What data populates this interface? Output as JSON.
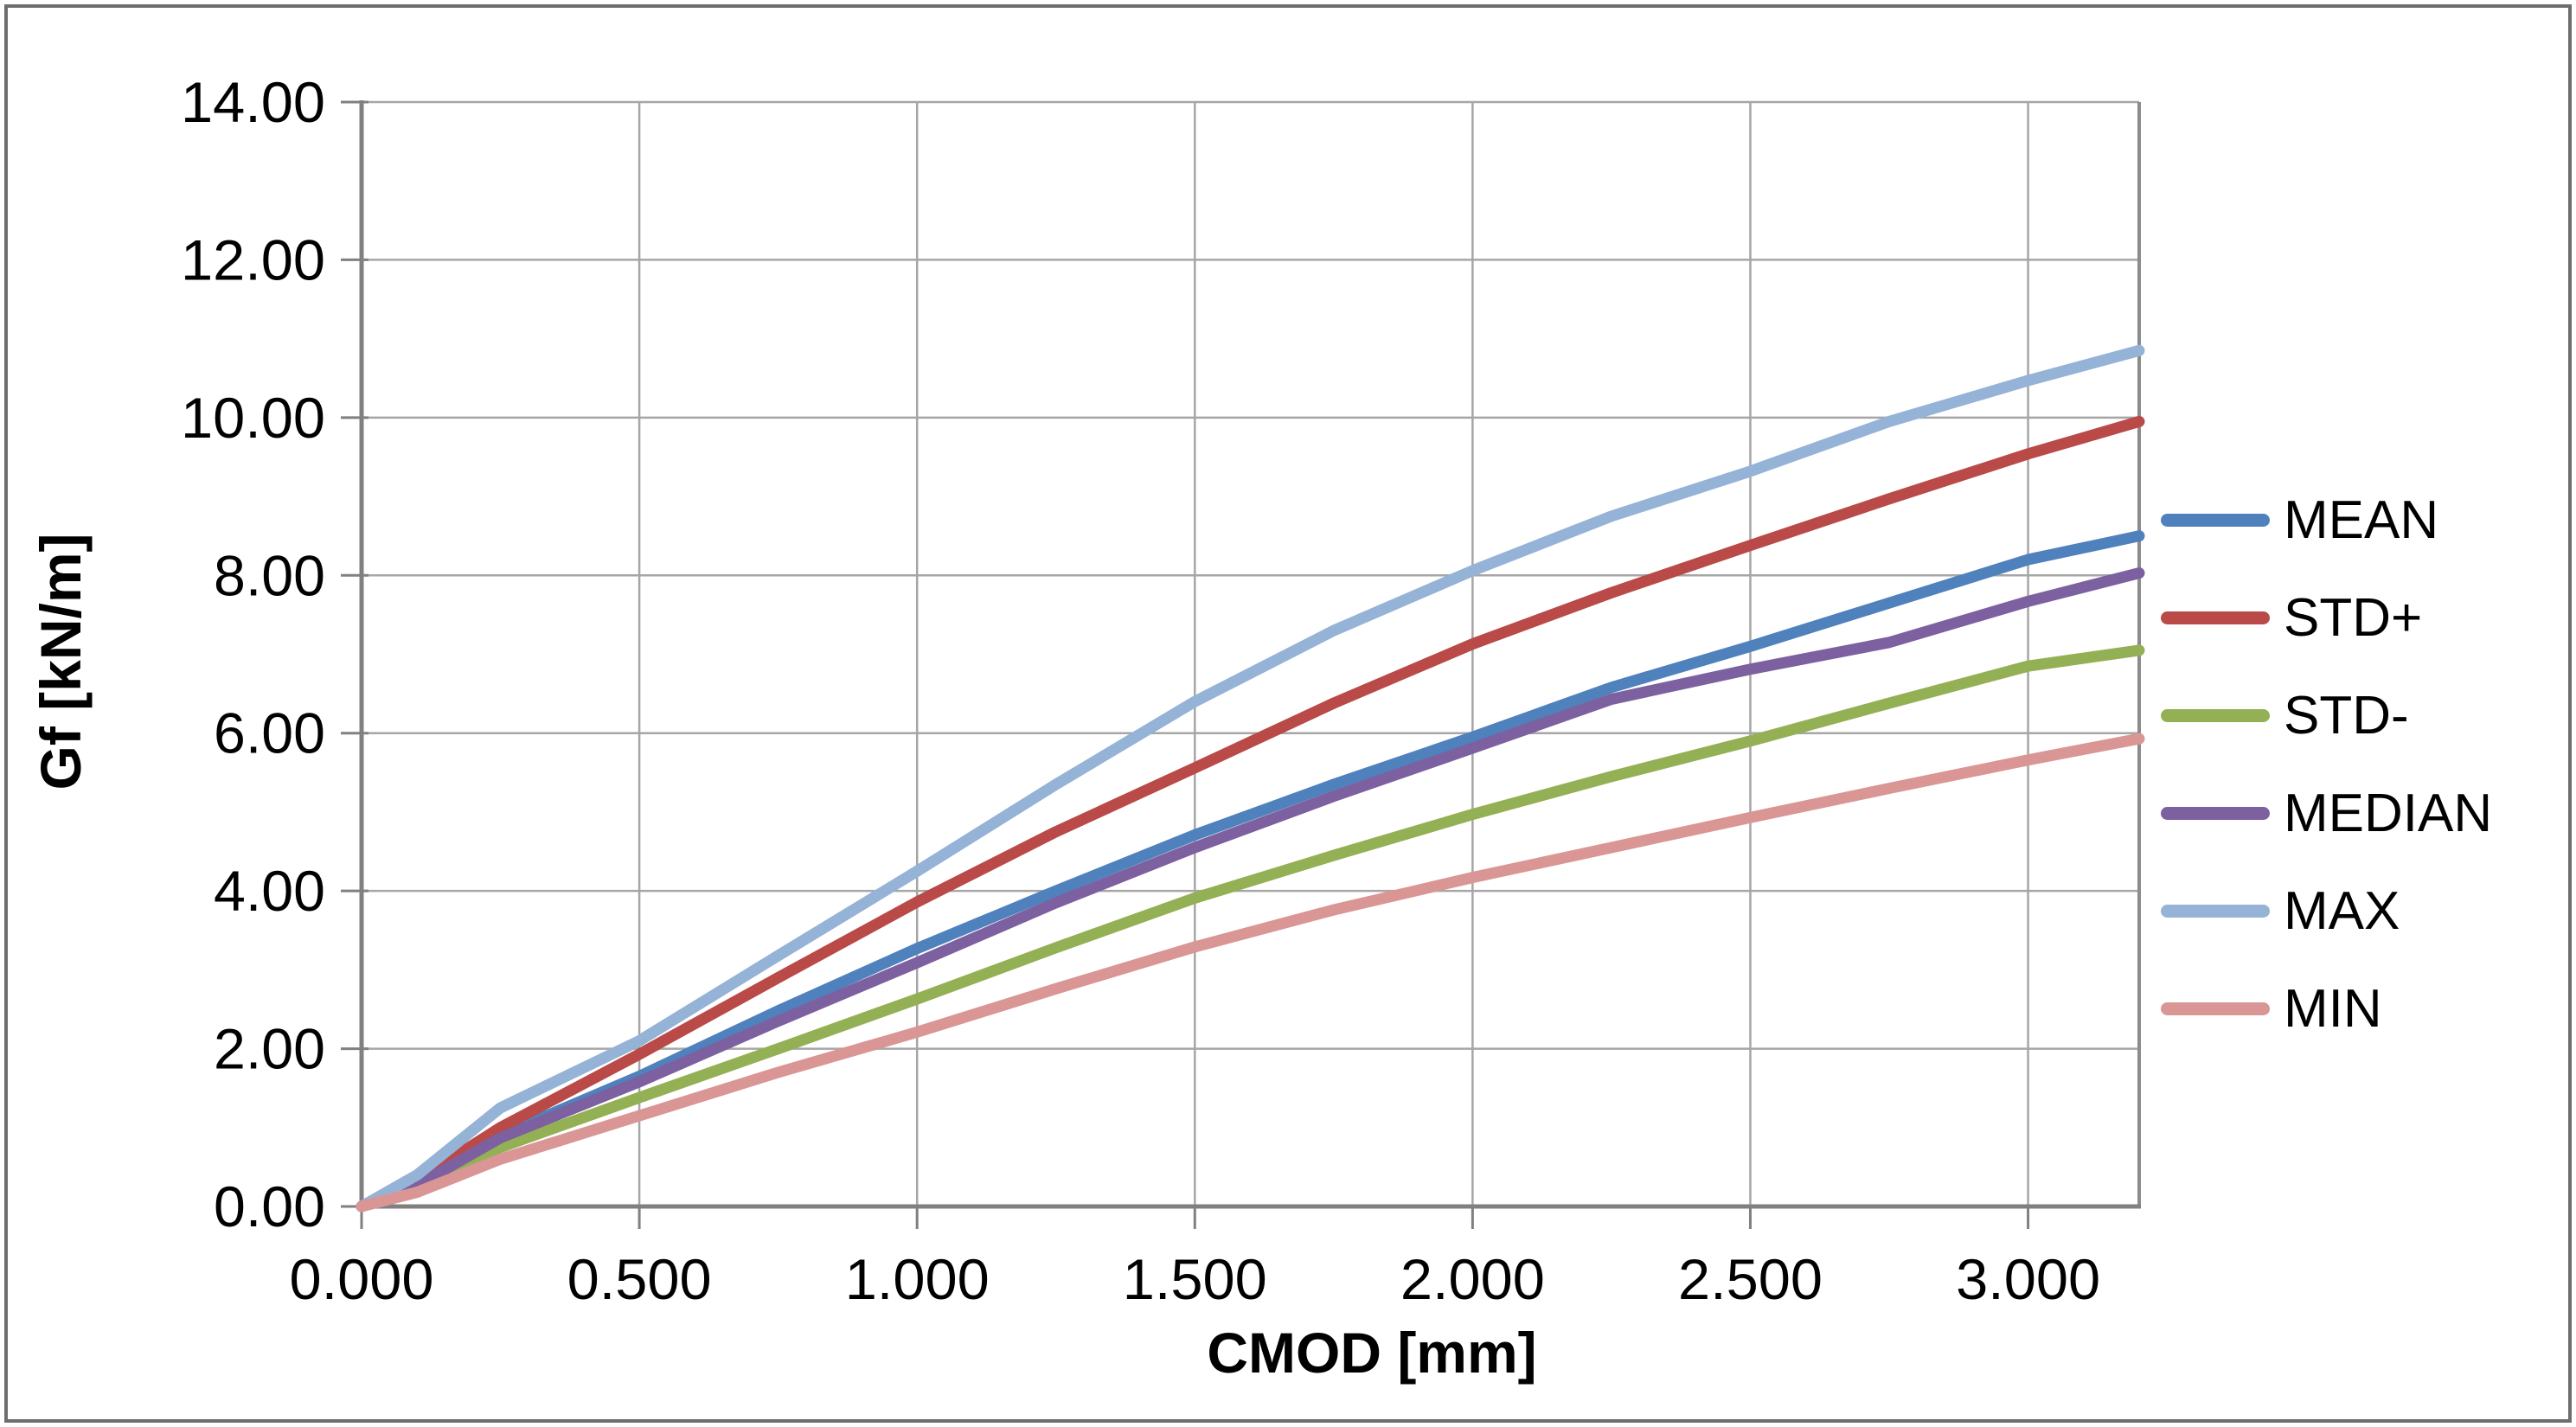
{
  "chart_data": {
    "type": "line",
    "title": "",
    "xlabel": "CMOD [mm]",
    "ylabel": "Gf [kN/m]",
    "xlim": [
      0,
      3.2
    ],
    "ylim": [
      0,
      14
    ],
    "grid": true,
    "legend_position": "right-middle",
    "x_tick_values": [
      0,
      0.5,
      1.0,
      1.5,
      2.0,
      2.5,
      3.0
    ],
    "x_tick_labels": [
      "0.000",
      "0.500",
      "1.000",
      "1.500",
      "2.000",
      "2.500",
      "3.000"
    ],
    "y_tick_values": [
      0,
      2,
      4,
      6,
      8,
      10,
      12,
      14
    ],
    "y_tick_labels": [
      "0.00",
      "2.00",
      "4.00",
      "6.00",
      "8.00",
      "10.00",
      "12.00",
      "14.00"
    ],
    "x": [
      0,
      0.1,
      0.25,
      0.5,
      0.75,
      1.0,
      1.25,
      1.5,
      1.75,
      2.0,
      2.25,
      2.5,
      2.75,
      3.0,
      3.2
    ],
    "series": [
      {
        "name": "MEAN",
        "color": "#4F81BD",
        "values": [
          0,
          0.29,
          0.9,
          1.65,
          2.48,
          3.27,
          4.0,
          4.71,
          5.35,
          5.95,
          6.58,
          7.1,
          7.65,
          8.2,
          8.5
        ]
      },
      {
        "name": "STD+",
        "color": "#B94A47",
        "values": [
          0,
          0.33,
          1.0,
          1.93,
          2.9,
          3.86,
          4.75,
          5.56,
          6.38,
          7.13,
          7.78,
          8.38,
          8.97,
          9.54,
          9.95
        ]
      },
      {
        "name": "STD-",
        "color": "#94B054",
        "values": [
          0,
          0.23,
          0.75,
          1.38,
          2.0,
          2.63,
          3.28,
          3.91,
          4.45,
          4.97,
          5.45,
          5.9,
          6.38,
          6.85,
          7.05
        ]
      },
      {
        "name": "MEDIAN",
        "color": "#7D60A0",
        "values": [
          0,
          0.27,
          0.87,
          1.58,
          2.35,
          3.09,
          3.85,
          4.55,
          5.2,
          5.81,
          6.43,
          6.81,
          7.15,
          7.67,
          8.03
        ]
      },
      {
        "name": "MAX",
        "color": "#95B3D7",
        "values": [
          0,
          0.4,
          1.25,
          2.1,
          3.18,
          4.25,
          5.35,
          6.4,
          7.3,
          8.06,
          8.75,
          9.32,
          9.95,
          10.47,
          10.85
        ]
      },
      {
        "name": "MIN",
        "color": "#D99694",
        "values": [
          0,
          0.18,
          0.6,
          1.15,
          1.7,
          2.21,
          2.76,
          3.29,
          3.76,
          4.17,
          4.55,
          4.93,
          5.3,
          5.66,
          5.93
        ]
      }
    ],
    "colors": {
      "axis": "#808080",
      "gridline": "#A6A6A6",
      "plot_border_right": "#8C8C8C",
      "frame": "#6E6E6E",
      "text": "#000000",
      "background": "#FFFFFF"
    }
  }
}
